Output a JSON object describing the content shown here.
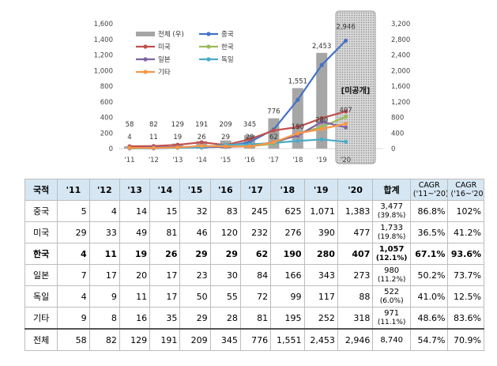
{
  "chart_data": {
    "type": "bar",
    "categories": [
      "'11",
      "'12",
      "'13",
      "'14",
      "'15",
      "'16",
      "'17",
      "'18",
      "'19",
      "'20"
    ],
    "bar_series": {
      "name": "전체 (우)",
      "axis": "right",
      "values": [
        58,
        82,
        129,
        191,
        209,
        345,
        776,
        1551,
        2453,
        2946
      ],
      "color": "#a6a6a6"
    },
    "series": [
      {
        "name": "중국",
        "axis": "left",
        "values": [
          5,
          4,
          14,
          15,
          32,
          83,
          245,
          625,
          1071,
          1383
        ],
        "color": "#4472c4"
      },
      {
        "name": "미국",
        "axis": "left",
        "values": [
          29,
          33,
          49,
          81,
          46,
          120,
          232,
          276,
          390,
          477
        ],
        "color": "#c0504d"
      },
      {
        "name": "한국",
        "axis": "left",
        "values": [
          4,
          11,
          19,
          26,
          29,
          29,
          62,
          190,
          280,
          407
        ],
        "color": "#9bbb59"
      },
      {
        "name": "일본",
        "axis": "left",
        "values": [
          7,
          17,
          20,
          17,
          23,
          30,
          84,
          166,
          343,
          273
        ],
        "color": "#8064a2"
      },
      {
        "name": "독일",
        "axis": "left",
        "values": [
          4,
          9,
          11,
          17,
          50,
          55,
          72,
          99,
          117,
          88
        ],
        "color": "#4bacc6"
      },
      {
        "name": "기타",
        "axis": "left",
        "values": [
          9,
          8,
          16,
          35,
          29,
          28,
          81,
          195,
          252,
          318
        ],
        "color": "#f79646"
      }
    ],
    "left_axis": {
      "ylim": [
        0,
        1600
      ],
      "ticks": [
        "0",
        "200",
        "400",
        "600",
        "800",
        "1,000",
        "1,200",
        "1,400",
        "1,600"
      ]
    },
    "right_axis": {
      "ylim": [
        0,
        3200
      ],
      "ticks": [
        "0",
        "400",
        "800",
        "1,200",
        "1,600",
        "2,000",
        "2,400",
        "2,800",
        "3,200"
      ]
    },
    "bar_labels": [
      "58",
      "82",
      "129",
      "191",
      "209",
      "345",
      "776",
      "1,551",
      "2,453",
      "2,946"
    ],
    "korea_labels": [
      "4",
      "11",
      "19",
      "26",
      "29",
      "29",
      "62",
      "190",
      "280",
      "407"
    ],
    "unpublished_label": "[미공개]",
    "legend_position": "top-left"
  },
  "table": {
    "headers": [
      "국적",
      "'11",
      "'12",
      "'13",
      "'14",
      "'15",
      "'16",
      "'17",
      "'18",
      "'19",
      "'20",
      "합계",
      "CAGR\n('11~'20)",
      "CAGR\n('16~'20)"
    ],
    "rows": [
      {
        "label": "중국",
        "values": [
          "5",
          "4",
          "14",
          "15",
          "32",
          "83",
          "245",
          "625",
          "1,071",
          "1,383"
        ],
        "total": "3,477",
        "share": "(39.8%)",
        "cagr1": "86.8%",
        "cagr2": "102%"
      },
      {
        "label": "미국",
        "values": [
          "29",
          "33",
          "49",
          "81",
          "46",
          "120",
          "232",
          "276",
          "390",
          "477"
        ],
        "total": "1,733",
        "share": "(19.8%)",
        "cagr1": "36.5%",
        "cagr2": "41.2%"
      },
      {
        "label": "한국",
        "values": [
          "4",
          "11",
          "19",
          "26",
          "29",
          "29",
          "62",
          "190",
          "280",
          "407"
        ],
        "total": "1,057",
        "share": "(12.1%)",
        "cagr1": "67.1%",
        "cagr2": "93.6%",
        "bold": true
      },
      {
        "label": "일본",
        "values": [
          "7",
          "17",
          "20",
          "17",
          "23",
          "30",
          "84",
          "166",
          "343",
          "273"
        ],
        "total": "980",
        "share": "(11.2%)",
        "cagr1": "50.2%",
        "cagr2": "73.7%"
      },
      {
        "label": "독일",
        "values": [
          "4",
          "9",
          "11",
          "17",
          "50",
          "55",
          "72",
          "99",
          "117",
          "88"
        ],
        "total": "522",
        "share": "(6.0%)",
        "cagr1": "41.0%",
        "cagr2": "12.5%"
      },
      {
        "label": "기타",
        "values": [
          "9",
          "8",
          "16",
          "35",
          "29",
          "28",
          "81",
          "195",
          "252",
          "318"
        ],
        "total": "971",
        "share": "(11.1%)",
        "cagr1": "48.6%",
        "cagr2": "83.6%"
      },
      {
        "label": "전체",
        "values": [
          "58",
          "82",
          "129",
          "191",
          "209",
          "345",
          "776",
          "1,551",
          "2,453",
          "2,946"
        ],
        "total": "8,740",
        "share": "",
        "cagr1": "54.7%",
        "cagr2": "70.9%"
      }
    ]
  }
}
